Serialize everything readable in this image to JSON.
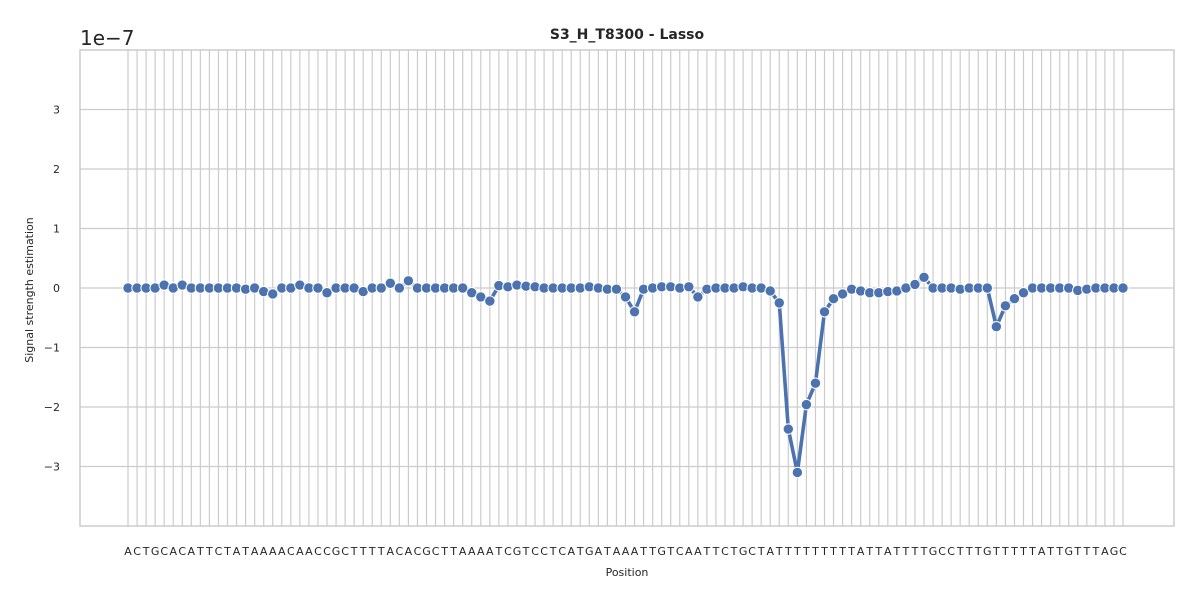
{
  "chart_data": {
    "type": "line",
    "title": "S3_H_T8300 - Lasso",
    "xlabel": "Position",
    "ylabel": "Signal strength estimation",
    "y_offset_label": "1e−7",
    "ylim": [
      -4,
      4
    ],
    "y_ticks": [
      -3,
      -2,
      -1,
      0,
      1,
      2,
      3
    ],
    "y_tick_labels": [
      "−3",
      "−2",
      "−1",
      "0",
      "1",
      "2",
      "3"
    ],
    "grid": true,
    "categories": [
      "A",
      "C",
      "T",
      "G",
      "C",
      "A",
      "C",
      "A",
      "T",
      "T",
      "C",
      "T",
      "A",
      "T",
      "A",
      "A",
      "A",
      "A",
      "C",
      "A",
      "A",
      "C",
      "C",
      "G",
      "C",
      "T",
      "T",
      "T",
      "T",
      "A",
      "C",
      "A",
      "C",
      "G",
      "C",
      "T",
      "T",
      "A",
      "A",
      "A",
      "A",
      "T",
      "C",
      "G",
      "T",
      "C",
      "C",
      "T",
      "C",
      "A",
      "T",
      "G",
      "A",
      "T",
      "A",
      "A",
      "A",
      "T",
      "T",
      "G",
      "T",
      "C",
      "A",
      "A",
      "T",
      "T",
      "C",
      "T",
      "G",
      "C",
      "T",
      "A",
      "T",
      "T",
      "T",
      "T",
      "T",
      "T",
      "T",
      "T",
      "T",
      "A",
      "T",
      "T",
      "A",
      "T",
      "T",
      "T",
      "T",
      "G",
      "C",
      "C",
      "T",
      "T",
      "T",
      "G",
      "T",
      "T",
      "T",
      "T",
      "T",
      "A",
      "T",
      "T",
      "G",
      "T",
      "T",
      "T",
      "A",
      "G",
      "C"
    ],
    "series": [
      {
        "color": "#4c72b0",
        "values": [
          0,
          0,
          0,
          0,
          0.05,
          0,
          0.05,
          0,
          0,
          0,
          0,
          0,
          0,
          -0.02,
          0,
          -0.06,
          -0.1,
          0,
          0,
          0.05,
          0,
          0,
          -0.08,
          0,
          0,
          0,
          -0.06,
          0,
          0,
          0.08,
          0,
          0.12,
          0,
          0,
          0,
          0,
          0,
          0,
          -0.08,
          -0.15,
          -0.22,
          0.04,
          0.02,
          0.05,
          0.03,
          0.02,
          0,
          0,
          0,
          0,
          0,
          0.02,
          0,
          -0.02,
          -0.02,
          -0.15,
          -0.4,
          -0.02,
          0,
          0.02,
          0.02,
          0,
          0.02,
          -0.15,
          -0.02,
          0,
          0,
          0,
          0.02,
          0,
          0,
          -0.05,
          -0.25,
          -2.37,
          -3.1,
          -1.96,
          -1.6,
          -0.4,
          -0.18,
          -0.1,
          -0.02,
          -0.05,
          -0.08,
          -0.08,
          -0.06,
          -0.05,
          0,
          0.06,
          0.18,
          0,
          0,
          0,
          -0.02,
          0,
          0,
          0,
          -0.65,
          -0.3,
          -0.18,
          -0.08,
          0,
          0,
          0,
          0,
          0,
          -0.04,
          -0.02,
          0,
          0,
          0,
          0
        ]
      }
    ]
  }
}
